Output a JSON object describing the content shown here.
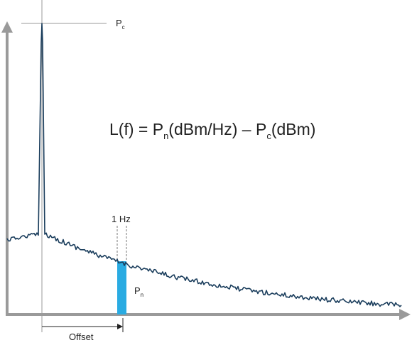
{
  "carrier_label": {
    "symbol": "P",
    "subscript": "c"
  },
  "formula": {
    "lhs": "L(f) = P",
    "sub_n": "n",
    "middle": "(dBm/Hz) – P",
    "sub_c": "c",
    "end": "(dBm)"
  },
  "bandwidth_label": "1 Hz",
  "noise_label": {
    "symbol": "P",
    "subscript": "n"
  },
  "offset_label": "Offset"
}
